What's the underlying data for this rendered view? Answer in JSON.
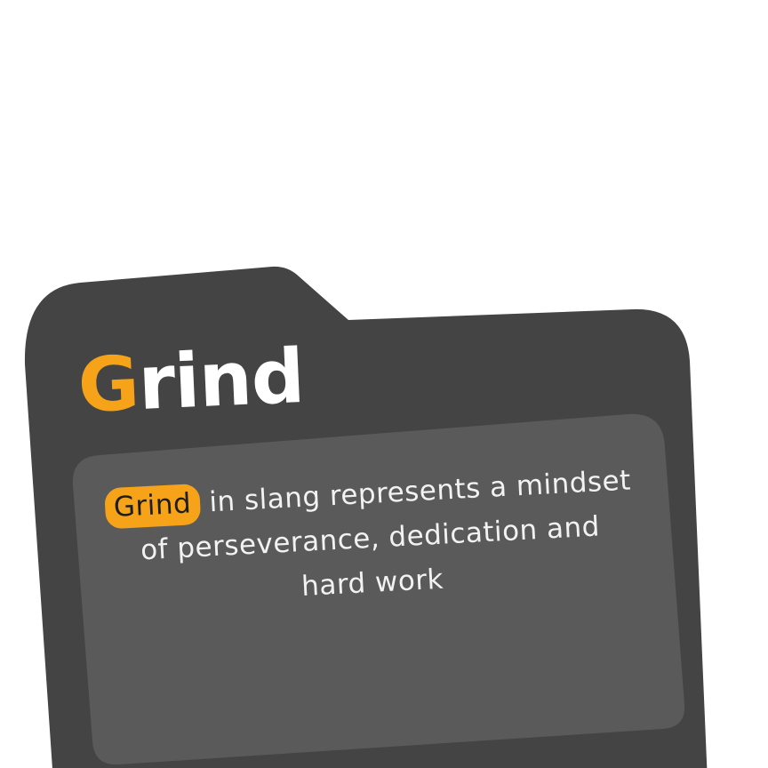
{
  "card": {
    "title_first_letter": "G",
    "title_rest": "rind",
    "highlight_word": "Grind",
    "line1_rest": " in slang represents a mindset",
    "line2": "of perseverance, dedication and",
    "line3": "hard work"
  },
  "colors": {
    "folder": "#444444",
    "panel": "#5a5a5a",
    "accent": "#f6a31a",
    "text": "#f2f2f2"
  }
}
